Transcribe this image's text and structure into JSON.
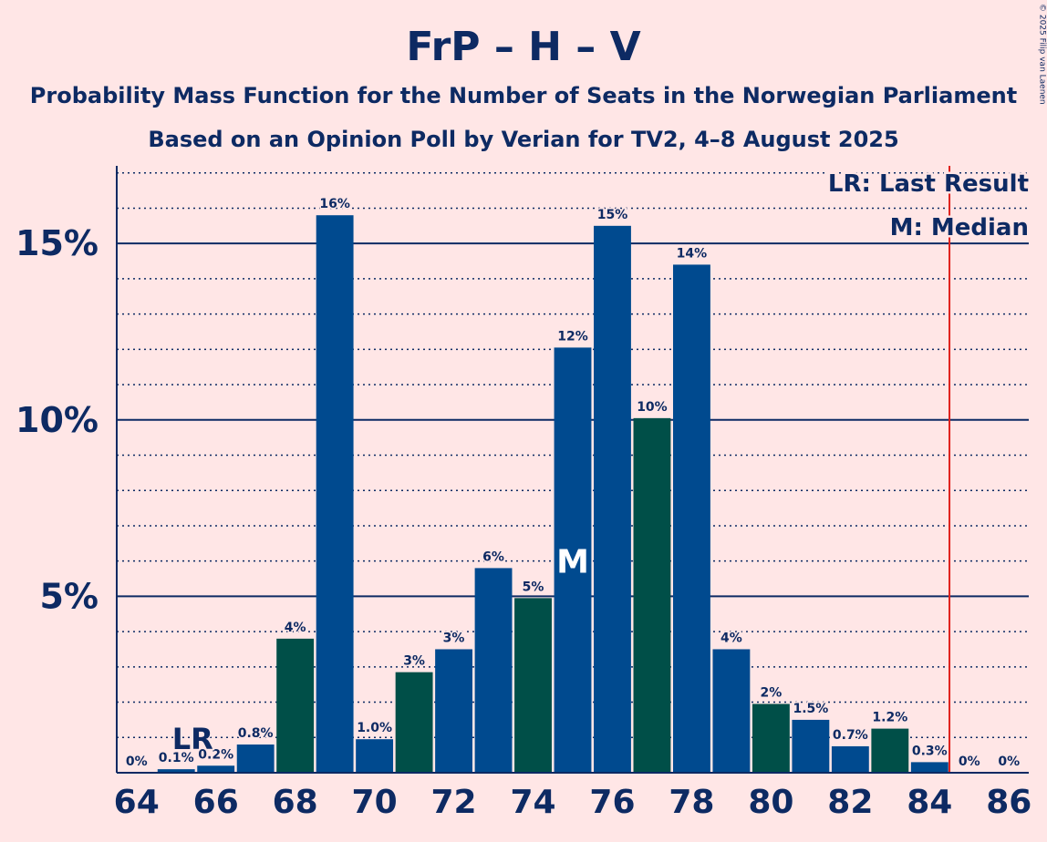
{
  "chart_data": {
    "type": "bar",
    "title": "FrP – H – V",
    "subtitle": "Probability Mass Function for the Number of Seats in the Norwegian Parliament",
    "subtitle2": "Based on an Opinion Poll by Verian for TV2, 4–8 August 2025",
    "copyright": "© 2025 Filip van Laenen",
    "x": [
      64,
      65,
      66,
      67,
      68,
      69,
      70,
      71,
      72,
      73,
      74,
      75,
      76,
      77,
      78,
      79,
      80,
      81,
      82,
      83,
      84,
      85,
      86
    ],
    "values": [
      0,
      0.1,
      0.2,
      0.8,
      3.8,
      15.8,
      0.95,
      2.85,
      3.5,
      5.8,
      4.95,
      12.05,
      15.5,
      10.05,
      14.4,
      3.5,
      1.95,
      1.5,
      0.75,
      1.25,
      0.3,
      0,
      0
    ],
    "labels": [
      "0%",
      "0.1%",
      "0.2%",
      "0.8%",
      "4%",
      "16%",
      "1.0%",
      "3%",
      "3%",
      "6%",
      "5%",
      "12%",
      "15%",
      "10%",
      "14%",
      "4%",
      "2%",
      "1.5%",
      "0.7%",
      "1.2%",
      "0.3%",
      "0%",
      "0%"
    ],
    "bar_colors": [
      "#004A8F",
      "#004A8F",
      "#004A8F",
      "#004A8F",
      "#004F48",
      "#004A8F",
      "#004A8F",
      "#004F48",
      "#004A8F",
      "#004A8F",
      "#004F48",
      "#004A8F",
      "#004A8F",
      "#004F48",
      "#004A8F",
      "#004A8F",
      "#004F48",
      "#004A8F",
      "#004A8F",
      "#004F48",
      "#004A8F",
      "#004A8F",
      "#004A8F"
    ],
    "x_ticks": [
      64,
      66,
      68,
      70,
      72,
      74,
      76,
      78,
      80,
      82,
      84,
      86
    ],
    "y_ticks": [
      {
        "value": 5,
        "label": "5%"
      },
      {
        "value": 10,
        "label": "10%"
      },
      {
        "value": 15,
        "label": "15%"
      }
    ],
    "ylim": [
      0,
      17.2
    ],
    "xlim": [
      63.5,
      86.5
    ],
    "minor_grid_step": 1,
    "last_result": {
      "seat": 65,
      "label": "LR"
    },
    "median": {
      "seat": 75,
      "label": "M"
    },
    "majority_line": 84.5,
    "legend": [
      "LR: Last Result",
      "M: Median"
    ],
    "legend_position": "top-right",
    "colors": {
      "background": "#FFE6E6",
      "text": "#0D2A63",
      "axis": "#0D2A63",
      "majority_line": "#E0201B",
      "median_label": "#FFFFFF"
    }
  }
}
